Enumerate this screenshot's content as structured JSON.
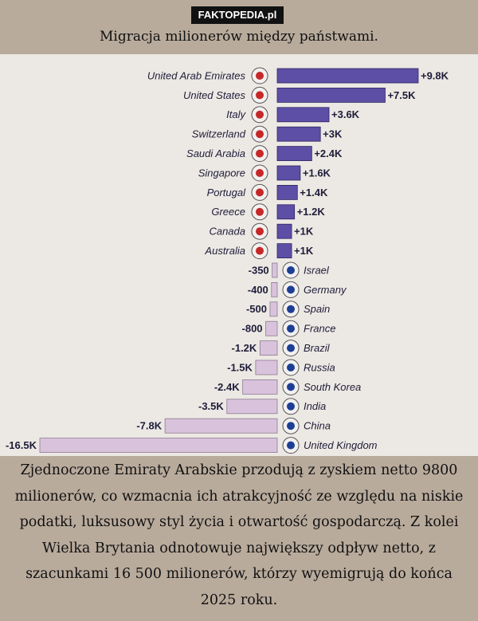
{
  "header": {
    "site": "FAKTOPEDIA.pl"
  },
  "chart_data": {
    "type": "bar",
    "orientation": "horizontal",
    "title": "Migracja milionerów między państwami.",
    "categories": [
      "United Arab Emirates",
      "United States",
      "Italy",
      "Switzerland",
      "Saudi Arabia",
      "Singapore",
      "Portugal",
      "Greece",
      "Canada",
      "Australia",
      "Israel",
      "Germany",
      "Spain",
      "France",
      "Brazil",
      "Russia",
      "South Korea",
      "India",
      "China",
      "United Kingdom"
    ],
    "values": [
      9800,
      7500,
      3600,
      3000,
      2400,
      1600,
      1400,
      1200,
      1000,
      1000,
      -350,
      -400,
      -500,
      -800,
      -1200,
      -1500,
      -2400,
      -3500,
      -7800,
      -16500
    ],
    "value_labels": [
      "+9.8K",
      "+7.5K",
      "+3.6K",
      "+3K",
      "+2.4K",
      "+1.6K",
      "+1.4K",
      "+1.2K",
      "+1K",
      "+1K",
      "-350",
      "-400",
      "-500",
      "-800",
      "-1.2K",
      "-1.5K",
      "-2.4K",
      "-3.5K",
      "-7.8K",
      "-16.5K"
    ],
    "positive_color": "#5d4ea6",
    "negative_color": "#d9c3dc"
  },
  "caption": "Zjednoczone Emiraty Arabskie przodują z zyskiem netto 9800 milionerów, co wzmacnia ich atrakcyjność ze względu na niskie podatki, luksusowy styl życia i otwartość gospodarczą. Z kolei Wielka Brytania odnotowuje największy odpływ netto, z szacunkami 16 500 milionerów, którzy wyemigrują do końca 2025 roku."
}
